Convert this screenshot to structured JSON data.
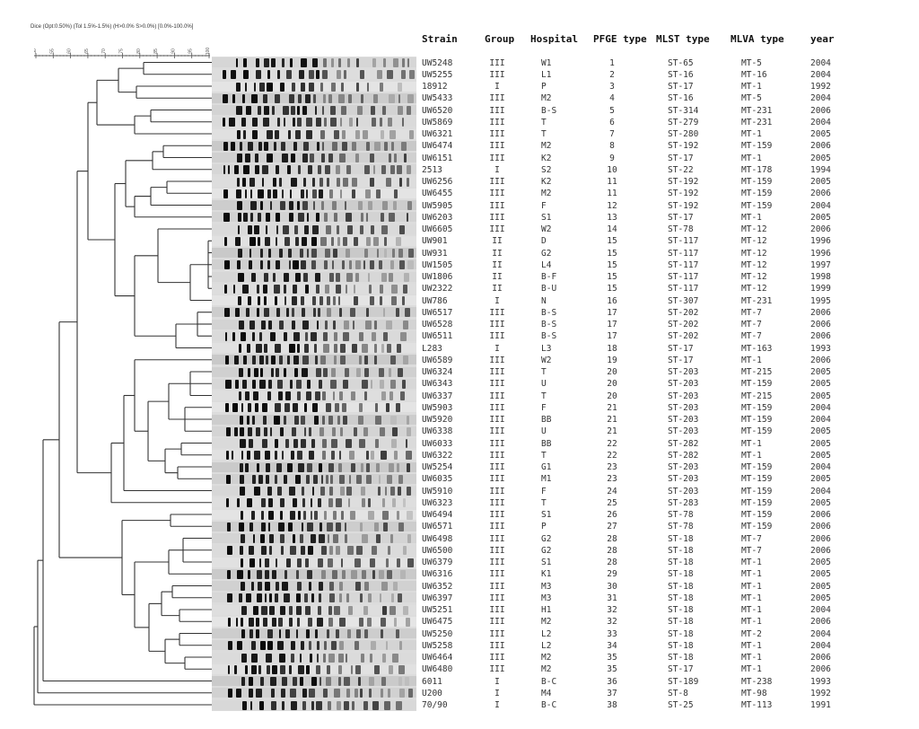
{
  "method_text": "Dice (Opt:0.50%) (Tol 1.5%-1.5%) (H>0.0% S>0.0%) [0.0%-100.0%]",
  "scale_ticks": [
    "50",
    "55",
    "60",
    "65",
    "70",
    "75",
    "80",
    "85",
    "90",
    "95",
    "100"
  ],
  "columns": {
    "strain": "Strain",
    "group": "Group",
    "hospital": "Hospital",
    "pfge": "PFGE type",
    "mlst": "MLST type",
    "mlva": "MLVA type",
    "year": "year"
  },
  "rows": [
    [
      "UW5248",
      "III",
      "W1",
      "1",
      "ST-65",
      "MT-5",
      "2004"
    ],
    [
      "UW5255",
      "III",
      "L1",
      "2",
      "ST-16",
      "MT-16",
      "2004"
    ],
    [
      "18912",
      "I",
      "P",
      "3",
      "ST-17",
      "MT-1",
      "1992"
    ],
    [
      "UW5433",
      "III",
      "M2",
      "4",
      "ST-16",
      "MT-5",
      "2004"
    ],
    [
      "UW6520",
      "III",
      "B-S",
      "5",
      "ST-314",
      "MT-231",
      "2006"
    ],
    [
      "UW5869",
      "III",
      "T",
      "6",
      "ST-279",
      "MT-231",
      "2004"
    ],
    [
      "UW6321",
      "III",
      "T",
      "7",
      "ST-280",
      "MT-1",
      "2005"
    ],
    [
      "UW6474",
      "III",
      "M2",
      "8",
      "ST-192",
      "MT-159",
      "2006"
    ],
    [
      "UW6151",
      "III",
      "K2",
      "9",
      "ST-17",
      "MT-1",
      "2005"
    ],
    [
      "2513",
      "I",
      "S2",
      "10",
      "ST-22",
      "MT-178",
      "1994"
    ],
    [
      "UW6256",
      "III",
      "K2",
      "11",
      "ST-192",
      "MT-159",
      "2005"
    ],
    [
      "UW6455",
      "III",
      "M2",
      "11",
      "ST-192",
      "MT-159",
      "2006"
    ],
    [
      "UW5905",
      "III",
      "F",
      "12",
      "ST-192",
      "MT-159",
      "2004"
    ],
    [
      "UW6203",
      "III",
      "S1",
      "13",
      "ST-17",
      "MT-1",
      "2005"
    ],
    [
      "UW6605",
      "III",
      "W2",
      "14",
      "ST-78",
      "MT-12",
      "2006"
    ],
    [
      "UW901",
      "II",
      "D",
      "15",
      "ST-117",
      "MT-12",
      "1996"
    ],
    [
      "UW931",
      "II",
      "G2",
      "15",
      "ST-117",
      "MT-12",
      "1996"
    ],
    [
      "UW1505",
      "II",
      "L4",
      "15",
      "ST-117",
      "MT-12",
      "1997"
    ],
    [
      "UW1806",
      "II",
      "B-F",
      "15",
      "ST-117",
      "MT-12",
      "1998"
    ],
    [
      "UW2322",
      "II",
      "B-U",
      "15",
      "ST-117",
      "MT-12",
      "1999"
    ],
    [
      "UW786",
      "I",
      "N",
      "16",
      "ST-307",
      "MT-231",
      "1995"
    ],
    [
      "UW6517",
      "III",
      "B-S",
      "17",
      "ST-202",
      "MT-7",
      "2006"
    ],
    [
      "UW6528",
      "III",
      "B-S",
      "17",
      "ST-202",
      "MT-7",
      "2006"
    ],
    [
      "UW6511",
      "III",
      "B-S",
      "17",
      "ST-202",
      "MT-7",
      "2006"
    ],
    [
      "L283",
      "I",
      "L3",
      "18",
      "ST-17",
      "MT-163",
      "1993"
    ],
    [
      "UW6589",
      "III",
      "W2",
      "19",
      "ST-17",
      "MT-1",
      "2006"
    ],
    [
      "UW6324",
      "III",
      "T",
      "20",
      "ST-203",
      "MT-215",
      "2005"
    ],
    [
      "UW6343",
      "III",
      "U",
      "20",
      "ST-203",
      "MT-159",
      "2005"
    ],
    [
      "UW6337",
      "III",
      "T",
      "20",
      "ST-203",
      "MT-215",
      "2005"
    ],
    [
      "UW5903",
      "III",
      "F",
      "21",
      "ST-203",
      "MT-159",
      "2004"
    ],
    [
      "UW5920",
      "III",
      "BB",
      "21",
      "ST-203",
      "MT-159",
      "2004"
    ],
    [
      "UW6338",
      "III",
      "U",
      "21",
      "ST-203",
      "MT-159",
      "2005"
    ],
    [
      "UW6033",
      "III",
      "BB",
      "22",
      "ST-282",
      "MT-1",
      "2005"
    ],
    [
      "UW6322",
      "III",
      "T",
      "22",
      "ST-282",
      "MT-1",
      "2005"
    ],
    [
      "UW5254",
      "III",
      "G1",
      "23",
      "ST-203",
      "MT-159",
      "2004"
    ],
    [
      "UW6035",
      "III",
      "M1",
      "23",
      "ST-203",
      "MT-159",
      "2005"
    ],
    [
      "UW5910",
      "III",
      "F",
      "24",
      "ST-203",
      "MT-159",
      "2004"
    ],
    [
      "UW6323",
      "III",
      "T",
      "25",
      "ST-283",
      "MT-159",
      "2005"
    ],
    [
      "UW6494",
      "III",
      "S1",
      "26",
      "ST-78",
      "MT-159",
      "2006"
    ],
    [
      "UW6571",
      "III",
      "P",
      "27",
      "ST-78",
      "MT-159",
      "2006"
    ],
    [
      "UW6498",
      "III",
      "G2",
      "28",
      "ST-18",
      "MT-7",
      "2006"
    ],
    [
      "UW6500",
      "III",
      "G2",
      "28",
      "ST-18",
      "MT-7",
      "2006"
    ],
    [
      "UW6379",
      "III",
      "S1",
      "28",
      "ST-18",
      "MT-1",
      "2005"
    ],
    [
      "UW6316",
      "III",
      "K1",
      "29",
      "ST-18",
      "MT-1",
      "2005"
    ],
    [
      "UW6352",
      "III",
      "M3",
      "30",
      "ST-18",
      "MT-1",
      "2005"
    ],
    [
      "UW6397",
      "III",
      "M3",
      "31",
      "ST-18",
      "MT-1",
      "2005"
    ],
    [
      "UW5251",
      "III",
      "H1",
      "32",
      "ST-18",
      "MT-1",
      "2004"
    ],
    [
      "UW6475",
      "III",
      "M2",
      "32",
      "ST-18",
      "MT-1",
      "2006"
    ],
    [
      "UW5250",
      "III",
      "L2",
      "33",
      "ST-18",
      "MT-2",
      "2004"
    ],
    [
      "UW5258",
      "III",
      "L2",
      "34",
      "ST-18",
      "MT-1",
      "2004"
    ],
    [
      "UW6464",
      "III",
      "M2",
      "35",
      "ST-18",
      "MT-1",
      "2006"
    ],
    [
      "UW6480",
      "III",
      "M2",
      "35",
      "ST-17",
      "MT-1",
      "2006"
    ],
    [
      "6011",
      "I",
      "B-C",
      "36",
      "ST-189",
      "MT-238",
      "1993"
    ],
    [
      "U200",
      "I",
      "M4",
      "37",
      "ST-8",
      "MT-98",
      "1992"
    ],
    [
      "70/90",
      "I",
      "B-C",
      "38",
      "ST-25",
      "MT-113",
      "1991"
    ]
  ]
}
